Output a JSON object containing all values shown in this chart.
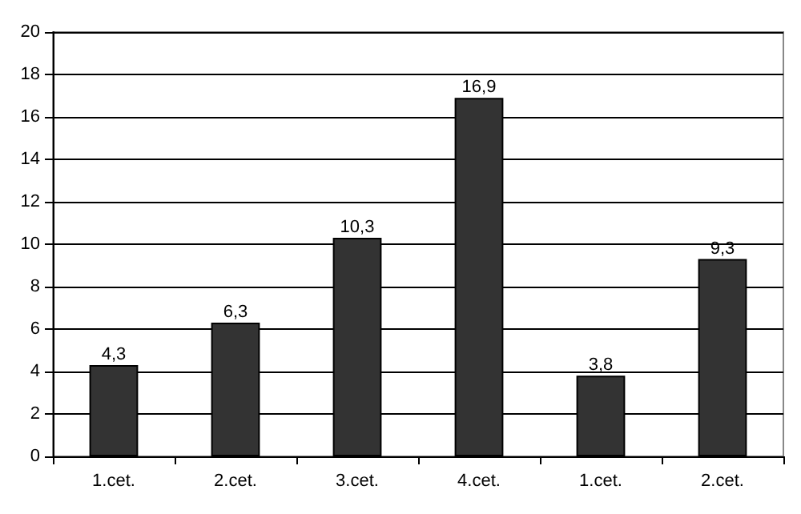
{
  "chart_data": {
    "type": "bar",
    "categories": [
      "1.cet.",
      "2.cet.",
      "3.cet.",
      "4.cet.",
      "1.cet.",
      "2.cet."
    ],
    "values": [
      4.3,
      6.3,
      10.3,
      16.9,
      3.8,
      9.3
    ],
    "value_labels": [
      "4,3",
      "6,3",
      "10,3",
      "16,9",
      "3,8",
      "9,3"
    ],
    "color": "#333333",
    "ylim": [
      0,
      20
    ],
    "yticks": [
      0,
      2,
      4,
      6,
      8,
      10,
      12,
      14,
      16,
      18,
      20
    ],
    "grid": "y"
  }
}
